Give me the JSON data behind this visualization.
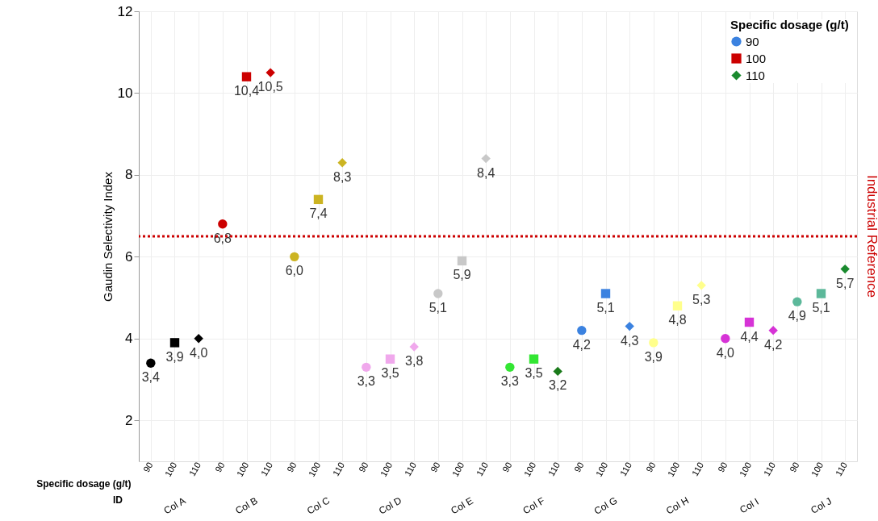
{
  "chart_data": {
    "type": "scatter",
    "ylabel": "Gaudin Selectivity Index",
    "xlabel": "Specific dosage (g/t)",
    "legend_title": "Specific dosage (g/t)",
    "legend": "top right",
    "grid": true,
    "categories": [
      "90",
      "100",
      "110",
      "90",
      "100",
      "110",
      "90",
      "100",
      "110",
      "90",
      "100",
      "110",
      "90",
      "100",
      "110",
      "90",
      "100",
      "110",
      "90",
      "100",
      "110",
      "90",
      "100",
      "110",
      "90",
      "100",
      "110",
      "90",
      "100",
      "110"
    ],
    "ylim": [
      1,
      12
    ],
    "yticks": [
      2,
      4,
      6,
      8,
      10,
      12
    ],
    "series": [
      {
        "name": "90",
        "color": "#3b82e0",
        "marker": "circle",
        "values": [
          3.4,
          null,
          null,
          6.8,
          null,
          null,
          6.0,
          null,
          null,
          3.3,
          null,
          null,
          5.1,
          null,
          null,
          3.3,
          null,
          null,
          4.2,
          null,
          null,
          3.9,
          null,
          null,
          4.0,
          null,
          null,
          4.9,
          null,
          null
        ],
        "colors": [
          "#000000",
          null,
          null,
          "#cc0000",
          null,
          null,
          "#ccb422",
          null,
          null,
          "#f0a8ec",
          null,
          null,
          "#c8c8c8",
          null,
          null,
          "#33e633",
          null,
          null,
          "#3b82e0",
          null,
          null,
          "#ffff8c",
          null,
          null,
          "#d633d6",
          null,
          null,
          "#5cb89a",
          null,
          null
        ],
        "value_labels": [
          "3,4",
          null,
          null,
          "6,8",
          null,
          null,
          "6,0",
          null,
          null,
          "3,3",
          null,
          null,
          "5,1",
          null,
          null,
          "3,3",
          null,
          null,
          "4,2",
          null,
          null,
          "3,9",
          null,
          null,
          "4,0",
          null,
          null,
          "4,9",
          null,
          null
        ]
      },
      {
        "name": "100",
        "color": "#cc0000",
        "marker": "square",
        "values": [
          null,
          3.9,
          null,
          null,
          10.4,
          null,
          null,
          7.4,
          null,
          null,
          3.5,
          null,
          null,
          5.9,
          null,
          null,
          3.5,
          null,
          null,
          5.1,
          null,
          null,
          4.8,
          null,
          null,
          4.4,
          null,
          null,
          5.1,
          null
        ],
        "colors": [
          null,
          "#000000",
          null,
          null,
          "#cc0000",
          null,
          null,
          "#ccb422",
          null,
          null,
          "#f0a8ec",
          null,
          null,
          "#c8c8c8",
          null,
          null,
          "#33e633",
          null,
          null,
          "#3b82e0",
          null,
          null,
          "#ffff8c",
          null,
          null,
          "#d633d6",
          null,
          null,
          "#5cb89a",
          null
        ],
        "value_labels": [
          null,
          "3,9",
          null,
          null,
          "10,4",
          null,
          null,
          "7,4",
          null,
          null,
          "3,5",
          null,
          null,
          "5,9",
          null,
          null,
          "3,5",
          null,
          null,
          "5,1",
          null,
          null,
          "4,8",
          null,
          null,
          "4,4",
          null,
          null,
          "5,1",
          null
        ]
      },
      {
        "name": "110",
        "color": "#1a8a2e",
        "marker": "diamond",
        "values": [
          null,
          null,
          4.0,
          null,
          null,
          10.5,
          null,
          null,
          8.3,
          null,
          null,
          3.8,
          null,
          null,
          8.4,
          null,
          null,
          3.2,
          null,
          null,
          4.3,
          null,
          null,
          5.3,
          null,
          null,
          4.2,
          null,
          null,
          5.7
        ],
        "colors": [
          null,
          null,
          "#000000",
          null,
          null,
          "#cc0000",
          null,
          null,
          "#ccb422",
          null,
          null,
          "#f0a8ec",
          null,
          null,
          "#c8c8c8",
          null,
          null,
          "#1a7a1a",
          null,
          null,
          "#3b82e0",
          null,
          null,
          "#ffff8c",
          null,
          null,
          "#d633d6",
          null,
          null,
          "#1a8a2e"
        ],
        "value_labels": [
          null,
          null,
          "4,0",
          null,
          null,
          "10,5",
          null,
          null,
          "8,3",
          null,
          null,
          "3,8",
          null,
          null,
          "8,4",
          null,
          null,
          "3,2",
          null,
          null,
          "4,3",
          null,
          null,
          "5,3",
          null,
          null,
          "4,2",
          null,
          null,
          "5,7"
        ]
      }
    ],
    "ref_lines": [
      {
        "axis": "y",
        "value": 6.5,
        "label": "Industrial Reference",
        "color": "#cc0000",
        "line_style": "dotted"
      }
    ],
    "annotations": [
      "ID",
      "Col A",
      "Col B",
      "Col C",
      "Col D",
      "Col E",
      "Col F",
      "Col G",
      "Col H",
      "Col I",
      "Col J"
    ]
  }
}
